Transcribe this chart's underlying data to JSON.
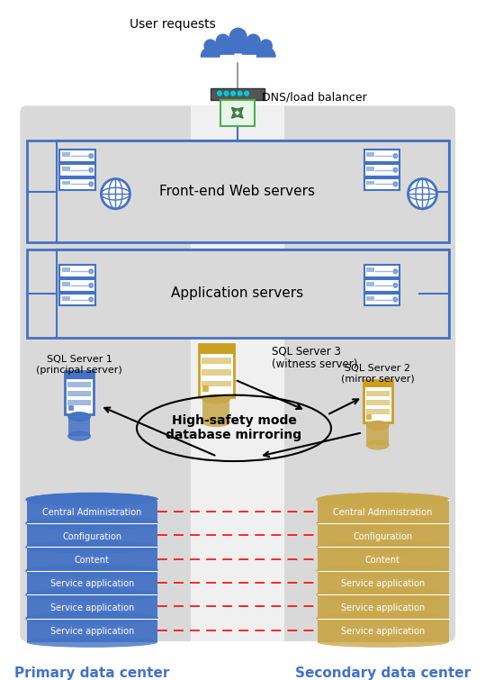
{
  "bg_color": "#d9d9d9",
  "strip_color": "#f0f0f0",
  "blue": "#4472C4",
  "gold": "#C9A020",
  "gold_db": "#C9A84C",
  "db_labels": [
    "Central Administration",
    "Configuration",
    "Content",
    "Service application",
    "Service application",
    "Service application"
  ],
  "frontend_label": "Front-end Web servers",
  "app_label": "Application servers",
  "sql1_label": "SQL Server 1\n(principal server)",
  "sql2_label": "SQL Server 2\n(mirror server)",
  "sql3_label": "SQL Server 3\n(witness server)",
  "mirror_label": "High-safety mode\ndatabase mirroring",
  "dns_label": "DNS/load balancer",
  "user_label": "User requests",
  "primary_label": "Primary data center",
  "secondary_label": "Secondary data center",
  "router_color": "#555555",
  "router_dot_color": "#00ccdd",
  "arrow_green": "#3a7d44"
}
